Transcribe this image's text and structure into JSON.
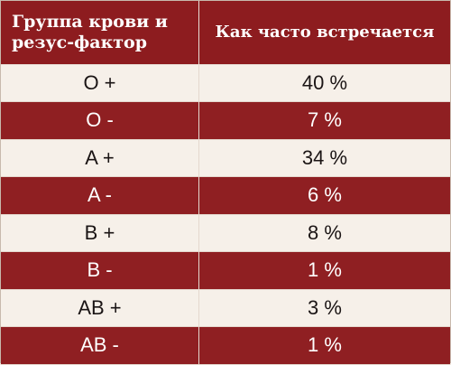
{
  "header": {
    "col1_line1": "Группа крови и",
    "col1_line2": "резус-фактор",
    "col2": "Как часто встречается"
  },
  "rows": [
    {
      "group": "O +",
      "frequency": "40 %"
    },
    {
      "group": "O -",
      "frequency": "7 %"
    },
    {
      "group": "A +",
      "frequency": "34 %"
    },
    {
      "group": "A -",
      "frequency": "6 %"
    },
    {
      "group": "B +",
      "frequency": "8 %"
    },
    {
      "group": "B -",
      "frequency": "1 %"
    },
    {
      "group": "AB +",
      "frequency": "3 %"
    },
    {
      "group": "AB -",
      "frequency": "1 %"
    }
  ],
  "colors": {
    "accent": "#8d1c1f",
    "light_row": "#f6f0e9",
    "dark_row": "#8f1f22"
  }
}
